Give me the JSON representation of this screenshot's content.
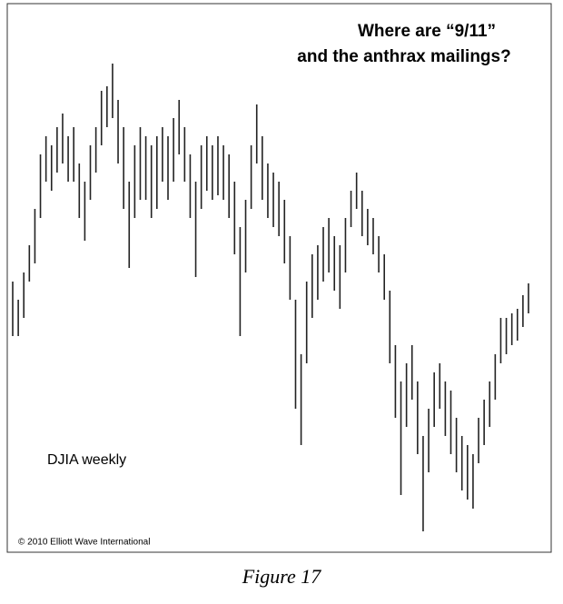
{
  "chart_data": {
    "type": "range",
    "title": [
      "Where are “9/11”",
      "and the anthrax mailings?"
    ],
    "series_label": "DJIA weekly",
    "credit": "© 2010 Elliott Wave International",
    "caption": "Figure 17",
    "color": "#222222",
    "highs": [
      9635,
      9455,
      9725,
      9995,
      10355,
      10895,
      11075,
      10985,
      11165,
      11300,
      11075,
      11165,
      10805,
      10625,
      10985,
      11165,
      11525,
      11570,
      11795,
      11435,
      11165,
      10625,
      10985,
      11165,
      11075,
      10985,
      11075,
      11165,
      11075,
      11255,
      11435,
      11165,
      10895,
      10625,
      10985,
      11075,
      10985,
      11075,
      10985,
      10895,
      10625,
      10175,
      10445,
      10985,
      11390,
      11075,
      10805,
      10715,
      10625,
      10445,
      10085,
      9455,
      8915,
      9635,
      9905,
      9995,
      10175,
      10265,
      10085,
      9995,
      10265,
      10535,
      10715,
      10535,
      10355,
      10265,
      10085,
      9905,
      9545,
      9005,
      8645,
      8825,
      9005,
      8645,
      8105,
      8375,
      8735,
      8825,
      8645,
      8555,
      8285,
      8105,
      8015,
      7925,
      8285,
      8465,
      8645,
      8915,
      9275,
      9275,
      9320,
      9365,
      9500,
      9617
    ],
    "lows": [
      9095,
      9095,
      9275,
      9635,
      9815,
      10265,
      10625,
      10535,
      10715,
      10805,
      10625,
      10625,
      10265,
      10040,
      10445,
      10715,
      10985,
      11165,
      11255,
      10805,
      10355,
      9770,
      10265,
      10445,
      10445,
      10265,
      10355,
      10625,
      10445,
      10625,
      10895,
      10625,
      10265,
      9680,
      10355,
      10535,
      10445,
      10490,
      10445,
      10265,
      9905,
      9095,
      9725,
      10355,
      10805,
      10445,
      10265,
      10175,
      10085,
      9815,
      9455,
      8375,
      8015,
      8825,
      9275,
      9455,
      9635,
      9725,
      9545,
      9365,
      9725,
      10175,
      10355,
      10085,
      9995,
      9905,
      9725,
      9455,
      8825,
      8285,
      7520,
      8195,
      8465,
      7925,
      7160,
      7745,
      8195,
      8375,
      8105,
      7925,
      7745,
      7565,
      7475,
      7385,
      7835,
      8015,
      8195,
      8465,
      8825,
      8915,
      9005,
      9050,
      9185,
      9320
    ]
  }
}
